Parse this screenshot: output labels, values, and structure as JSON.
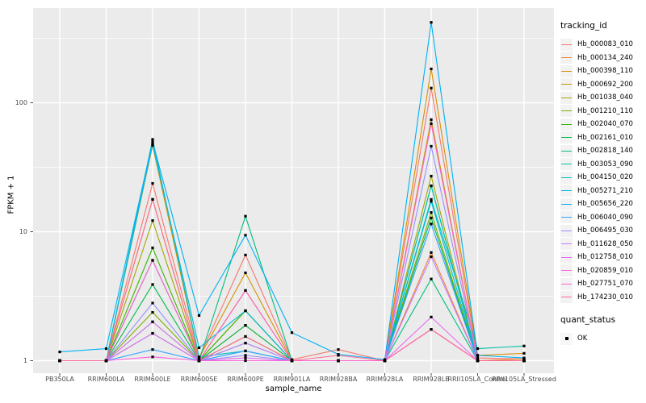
{
  "chart_data": {
    "type": "line",
    "title": "",
    "xlabel": "sample_name",
    "ylabel": "FPKM + 1",
    "y_scale": "log10",
    "y_ticks": [
      1,
      10,
      100
    ],
    "y_tick_labels": [
      "1",
      "10",
      "100"
    ],
    "y_minor_ticks": [
      3.162,
      31.62,
      316.2
    ],
    "ylim": [
      0.72,
      620
    ],
    "panel_bg": "#ebebeb",
    "grid_color": "#ffffff",
    "tick_color": "#333333",
    "tick_label_color": "#4d4d4d",
    "marker": "black-square",
    "marker_color": "#000000",
    "categories": [
      "PB350LA",
      "RRIM600LA",
      "RRIM600LE",
      "RRIM600SE",
      "RRIM600PE",
      "RRIM901LA",
      "RRIM928BA",
      "RRIM928LA",
      "RRIM928LB",
      "RRII105LA_Control",
      "RRII105LA_Stressed"
    ],
    "legend": {
      "title": "tracking_id",
      "position": "right"
    },
    "quant_status": {
      "title": "quant_status",
      "items": [
        {
          "label": "OK",
          "marker": "black-square",
          "color": "#000000"
        }
      ]
    },
    "series": [
      {
        "name": "Hb_000083_010",
        "color": "#F8766D",
        "values": [
          1.0,
          1.0,
          23.7,
          1.05,
          6.6,
          1.02,
          1.22,
          1.0,
          130,
          1.05,
          1.03
        ]
      },
      {
        "name": "Hb_000134_240",
        "color": "#EA8331",
        "values": [
          1.0,
          1.0,
          2.0,
          1.0,
          1.88,
          1.0,
          1.0,
          1.0,
          6.9,
          1.0,
          1.03
        ]
      },
      {
        "name": "Hb_000398_110",
        "color": "#D89000",
        "values": [
          1.0,
          1.0,
          46.7,
          1.05,
          4.8,
          1.0,
          1.0,
          1.0,
          183,
          1.1,
          1.14
        ]
      },
      {
        "name": "Hb_000692_200",
        "color": "#C09B00",
        "values": [
          1.0,
          1.0,
          17.8,
          1.0,
          3.5,
          1.0,
          1.0,
          1.0,
          74,
          1.0,
          1.0
        ]
      },
      {
        "name": "Hb_001038_040",
        "color": "#A3A500",
        "values": [
          1.0,
          1.0,
          12.2,
          1.0,
          2.44,
          1.0,
          1.0,
          1.0,
          27,
          1.0,
          1.0
        ]
      },
      {
        "name": "Hb_001210_110",
        "color": "#7CAE00",
        "values": [
          1.0,
          1.0,
          2.37,
          1.0,
          1.54,
          1.0,
          1.0,
          1.0,
          14.1,
          1.0,
          1.0
        ]
      },
      {
        "name": "Hb_002040_070",
        "color": "#39B600",
        "values": [
          1.0,
          1.0,
          7.5,
          1.0,
          2.44,
          1.0,
          1.0,
          1.0,
          22.7,
          1.0,
          1.0
        ]
      },
      {
        "name": "Hb_002161_010",
        "color": "#00BB4E",
        "values": [
          1.0,
          1.0,
          3.9,
          1.0,
          1.88,
          1.0,
          1.0,
          1.0,
          12.8,
          1.0,
          1.0
        ]
      },
      {
        "name": "Hb_002818_140",
        "color": "#00BF7D",
        "values": [
          1.0,
          1.0,
          1.63,
          1.0,
          13.2,
          1.0,
          1.0,
          1.0,
          4.3,
          1.0,
          1.0
        ]
      },
      {
        "name": "Hb_003053_090",
        "color": "#00C1A3",
        "values": [
          1.0,
          1.0,
          6.0,
          1.0,
          1.37,
          1.0,
          1.0,
          1.0,
          17.8,
          1.24,
          1.3
        ]
      },
      {
        "name": "Hb_004150_020",
        "color": "#00BFC4",
        "values": [
          1.0,
          1.0,
          52,
          1.07,
          1.19,
          1.0,
          1.0,
          1.0,
          22.7,
          1.0,
          1.0
        ]
      },
      {
        "name": "Hb_005271_210",
        "color": "#00BAE0",
        "values": [
          1.0,
          1.0,
          48,
          1.26,
          2.44,
          1.0,
          1.0,
          1.0,
          17.2,
          1.0,
          1.0
        ]
      },
      {
        "name": "Hb_005656_220",
        "color": "#00B0F6",
        "values": [
          1.17,
          1.24,
          50,
          2.24,
          9.4,
          1.65,
          1.12,
          1.02,
          420,
          1.1,
          1.05
        ]
      },
      {
        "name": "Hb_006040_090",
        "color": "#35A2FF",
        "values": [
          1.0,
          1.0,
          1.22,
          1.0,
          1.19,
          1.0,
          1.0,
          1.0,
          11.5,
          1.0,
          1.0
        ]
      },
      {
        "name": "Hb_006495_030",
        "color": "#9590FF",
        "values": [
          1.0,
          1.0,
          2.8,
          1.0,
          1.1,
          1.0,
          1.0,
          1.0,
          46,
          1.0,
          1.0
        ]
      },
      {
        "name": "Hb_011628_050",
        "color": "#C77CFF",
        "values": [
          1.0,
          1.0,
          2.0,
          1.0,
          1.37,
          1.0,
          1.0,
          1.0,
          6.4,
          1.0,
          1.0
        ]
      },
      {
        "name": "Hb_012758_010",
        "color": "#E76BF3",
        "values": [
          1.0,
          1.0,
          1.63,
          1.0,
          1.05,
          1.0,
          1.0,
          1.0,
          2.18,
          1.0,
          1.0
        ]
      },
      {
        "name": "Hb_020859_010",
        "color": "#FA62DB",
        "values": [
          1.0,
          1.0,
          1.07,
          1.0,
          1.0,
          1.0,
          1.0,
          1.0,
          1.75,
          1.0,
          1.0
        ]
      },
      {
        "name": "Hb_027751_070",
        "color": "#FF61CC",
        "values": [
          1.0,
          1.0,
          6.0,
          1.0,
          3.5,
          1.0,
          1.0,
          1.0,
          68.8,
          1.0,
          1.0
        ]
      },
      {
        "name": "Hb_174230_010",
        "color": "#FF6A98",
        "values": [
          1.0,
          1.0,
          17.8,
          1.0,
          1.54,
          1.0,
          1.1,
          1.0,
          1.75,
          1.0,
          1.0
        ]
      }
    ]
  }
}
